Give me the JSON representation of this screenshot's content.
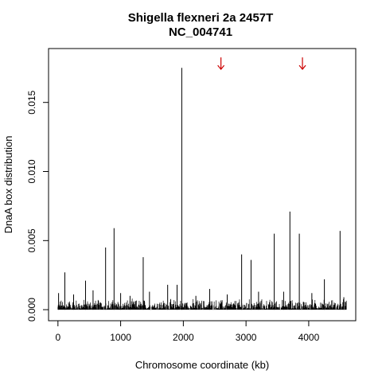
{
  "chart_data": {
    "type": "bar",
    "title": "Shigella flexneri 2a 2457T",
    "subtitle": "NC_004741",
    "xlabel": "Chromosome coordinate (kb)",
    "ylabel": "DnaA box distribution",
    "xlim": [
      -150,
      4750
    ],
    "ylim": [
      -0.0008,
      0.0189
    ],
    "xticks": [
      0,
      1000,
      2000,
      3000,
      4000
    ],
    "yticks": [
      0.0,
      0.005,
      0.01,
      0.015
    ],
    "ytick_labels": [
      "0.000",
      "0.005",
      "0.010",
      "0.015"
    ],
    "grid": false,
    "legend": "none",
    "bar_color": "#000000",
    "marker_color": "#cc0000",
    "markers": [
      {
        "x": 2600,
        "y": 0.0178,
        "icon": "down-arrow-icon"
      },
      {
        "x": 3900,
        "y": 0.0178,
        "icon": "down-arrow-icon"
      }
    ],
    "bars": [
      {
        "x": 10,
        "y": 0.0012
      },
      {
        "x": 110,
        "y": 0.0027
      },
      {
        "x": 250,
        "y": 0.0011
      },
      {
        "x": 440,
        "y": 0.0021
      },
      {
        "x": 560,
        "y": 0.0014
      },
      {
        "x": 760,
        "y": 0.0045
      },
      {
        "x": 895,
        "y": 0.0059
      },
      {
        "x": 1000,
        "y": 0.0012
      },
      {
        "x": 1150,
        "y": 0.001
      },
      {
        "x": 1360,
        "y": 0.0038
      },
      {
        "x": 1460,
        "y": 0.0013
      },
      {
        "x": 1750,
        "y": 0.0018
      },
      {
        "x": 1900,
        "y": 0.0018
      },
      {
        "x": 1975,
        "y": 0.0175
      },
      {
        "x": 2200,
        "y": 0.001
      },
      {
        "x": 2420,
        "y": 0.0015
      },
      {
        "x": 2700,
        "y": 0.0011
      },
      {
        "x": 2930,
        "y": 0.004
      },
      {
        "x": 3080,
        "y": 0.0036
      },
      {
        "x": 3200,
        "y": 0.0013
      },
      {
        "x": 3450,
        "y": 0.0055
      },
      {
        "x": 3600,
        "y": 0.0013
      },
      {
        "x": 3700,
        "y": 0.0071
      },
      {
        "x": 3850,
        "y": 0.0055
      },
      {
        "x": 4050,
        "y": 0.0012
      },
      {
        "x": 4250,
        "y": 0.0022
      },
      {
        "x": 4500,
        "y": 0.0057
      },
      {
        "x": 4560,
        "y": 0.0009
      }
    ],
    "baseline_noise_max": 0.0006,
    "x_end": 4600
  }
}
